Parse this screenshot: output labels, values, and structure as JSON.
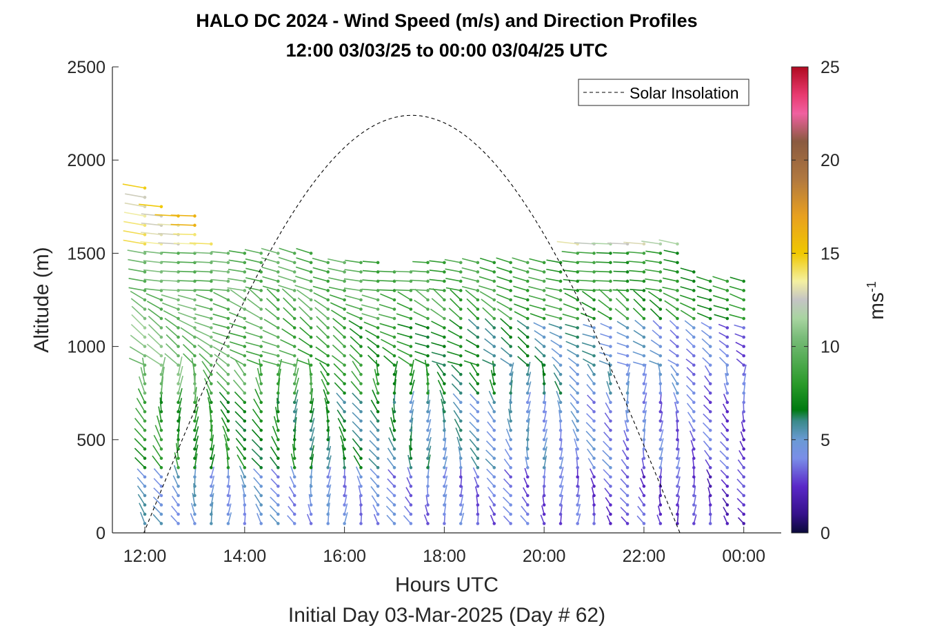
{
  "chart_data": {
    "type": "quiver",
    "title": "HALO DC 2024 - Wind Speed (m/s) and Direction Profiles",
    "subtitle": "12:00 03/03/25 to 00:00 03/04/25  UTC",
    "xlabel": "Hours UTC",
    "xlabel2": "Initial Day 03-Mar-2025 (Day # 62)",
    "ylabel": "Altitude (m)",
    "colorbar_label_base": "ms",
    "colorbar_label_exp": "-1",
    "x_tick_labels": [
      "12:00",
      "14:00",
      "16:00",
      "18:00",
      "20:00",
      "22:00",
      "00:00"
    ],
    "x_tick_hours": [
      12,
      14,
      16,
      18,
      20,
      22,
      24
    ],
    "y_ticks": [
      0,
      500,
      1000,
      1500,
      2000,
      2500
    ],
    "colorbar_ticks": [
      0,
      5,
      10,
      15,
      20,
      25
    ],
    "xlim_hours": [
      11.35,
      24.75
    ],
    "ylim": [
      0,
      2500
    ],
    "clim": [
      0,
      25
    ],
    "legend": {
      "entries": [
        "Solar Insolation"
      ],
      "location": "top-right",
      "line_style": "dashed"
    },
    "solar_insolation": {
      "sunrise_hour": 11.98,
      "sunset_hour": 22.72,
      "peak_hour": 17.35,
      "peak_altitude_equiv": 2240
    },
    "profiles": {
      "hours": [
        12.0,
        12.33,
        12.67,
        13.0,
        13.33,
        13.67,
        14.0,
        14.33,
        14.67,
        15.0,
        15.33,
        15.67,
        16.0,
        16.33,
        16.67,
        17.0,
        17.33,
        17.67,
        18.0,
        18.33,
        18.67,
        19.0,
        19.33,
        19.67,
        20.0,
        20.33,
        20.67,
        21.0,
        21.33,
        21.67,
        22.0,
        22.33,
        22.67,
        23.0,
        23.33,
        23.67,
        24.0
      ],
      "top_altitude_m": [
        1870,
        1790,
        1740,
        1700,
        1560,
        1530,
        1520,
        1530,
        1520,
        1510,
        1500,
        1490,
        1480,
        1460,
        1450,
        1440,
        1440,
        1470,
        1480,
        1480,
        1460,
        1480,
        1460,
        1450,
        1470,
        1480,
        1560,
        1550,
        1560,
        1550,
        1550,
        1560,
        1550,
        1400,
        1380,
        1380,
        1380
      ],
      "altitude_step_m": 50,
      "speed_bands": [
        {
          "max_altitude_m": 300,
          "speed_early": 5.0,
          "speed_late": 2.5
        },
        {
          "max_altitude_m": 700,
          "speed_early": 8.0,
          "speed_late": 3.0
        },
        {
          "max_altitude_m": 1100,
          "speed_early": 10.5,
          "speed_late": 3.5
        },
        {
          "max_altitude_m": 1500,
          "speed_early": 10.0,
          "speed_late": 7.5
        },
        {
          "max_altitude_m": 1900,
          "speed_early": 13.5,
          "speed_late": 12.0
        }
      ]
    }
  }
}
